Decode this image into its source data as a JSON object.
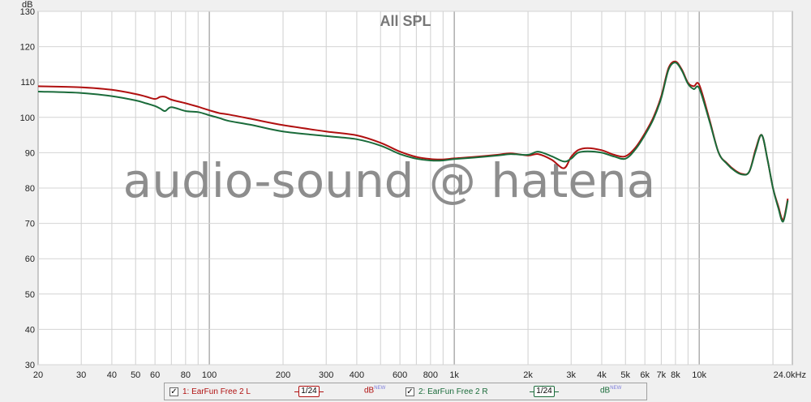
{
  "chart_data": {
    "type": "line",
    "title": "All SPL",
    "ylabel": "dB",
    "xscale": "log",
    "xlim": [
      20,
      24000
    ],
    "ylim": [
      30,
      130
    ],
    "y_ticks": [
      30,
      40,
      50,
      60,
      70,
      80,
      90,
      100,
      110,
      120,
      130
    ],
    "x_tick_labels": [
      {
        "f": 20,
        "label": "20"
      },
      {
        "f": 30,
        "label": "30"
      },
      {
        "f": 40,
        "label": "40"
      },
      {
        "f": 50,
        "label": "50"
      },
      {
        "f": 60,
        "label": "60"
      },
      {
        "f": 80,
        "label": "80"
      },
      {
        "f": 100,
        "label": "100"
      },
      {
        "f": 200,
        "label": "200"
      },
      {
        "f": 300,
        "label": "300"
      },
      {
        "f": 400,
        "label": "400"
      },
      {
        "f": 600,
        "label": "600"
      },
      {
        "f": 800,
        "label": "800"
      },
      {
        "f": 1000,
        "label": "1k"
      },
      {
        "f": 2000,
        "label": "2k"
      },
      {
        "f": 3000,
        "label": "3k"
      },
      {
        "f": 4000,
        "label": "4k"
      },
      {
        "f": 5000,
        "label": "5k"
      },
      {
        "f": 6000,
        "label": "6k"
      },
      {
        "f": 7000,
        "label": "7k"
      },
      {
        "f": 8000,
        "label": "8k"
      },
      {
        "f": 10000,
        "label": "10k"
      },
      {
        "f": 24000,
        "label": "24.0kHz"
      }
    ],
    "grid": true,
    "watermark": "audio-sound @ hatena",
    "series": [
      {
        "name": "1: EarFun Free 2 L",
        "color": "#b01010",
        "x": [
          20,
          30,
          40,
          50,
          55,
          60,
          63,
          66,
          70,
          80,
          90,
          100,
          110,
          120,
          150,
          200,
          300,
          400,
          500,
          600,
          700,
          800,
          900,
          1000,
          1200,
          1500,
          1700,
          2000,
          2200,
          2500,
          2800,
          3000,
          3200,
          3500,
          4000,
          4500,
          5000,
          5500,
          6000,
          6500,
          7000,
          7500,
          8000,
          8500,
          9000,
          9500,
          10000,
          11000,
          12000,
          13000,
          14000,
          15000,
          16000,
          17000,
          18000,
          19000,
          20000,
          21000,
          22000,
          23000
        ],
        "y": [
          108.8,
          108.5,
          107.8,
          106.6,
          105.9,
          105.2,
          105.8,
          105.8,
          105.0,
          104.0,
          103.0,
          102.0,
          101.2,
          100.8,
          99.5,
          97.8,
          96.0,
          94.9,
          92.8,
          90.3,
          88.8,
          88.2,
          88.1,
          88.4,
          88.8,
          89.4,
          89.8,
          89.2,
          89.6,
          88.0,
          85.6,
          88.8,
          90.7,
          91.3,
          90.7,
          89.4,
          89.0,
          91.5,
          95.5,
          100.0,
          106.0,
          114.0,
          115.8,
          113.5,
          109.8,
          108.8,
          109.2,
          99.5,
          90.0,
          87.0,
          85.0,
          84.0,
          84.6,
          91.0,
          95.0,
          88.0,
          80.0,
          75.0,
          71.0,
          77.0
        ]
      },
      {
        "name": "2: EarFun Free 2 R",
        "color": "#1a6b3a",
        "x": [
          20,
          30,
          40,
          50,
          55,
          60,
          63,
          66,
          70,
          80,
          90,
          100,
          110,
          120,
          150,
          200,
          300,
          400,
          500,
          600,
          700,
          800,
          900,
          1000,
          1200,
          1500,
          1700,
          2000,
          2200,
          2500,
          2800,
          3000,
          3200,
          3500,
          4000,
          4500,
          5000,
          5500,
          6000,
          6500,
          7000,
          7500,
          8000,
          8500,
          9000,
          9500,
          10000,
          11000,
          12000,
          13000,
          14000,
          15000,
          16000,
          17000,
          18000,
          19000,
          20000,
          21000,
          22000,
          23000
        ],
        "y": [
          107.3,
          106.9,
          106.0,
          104.8,
          104.0,
          103.2,
          102.5,
          101.8,
          102.9,
          101.8,
          101.5,
          100.6,
          99.8,
          99.0,
          97.8,
          96.0,
          94.7,
          93.8,
          92.0,
          89.6,
          88.3,
          87.8,
          87.8,
          88.2,
          88.6,
          89.2,
          89.6,
          89.4,
          90.3,
          89.0,
          87.5,
          88.3,
          90.0,
          90.4,
          90.0,
          88.9,
          88.3,
          91.0,
          95.0,
          99.5,
          105.5,
          113.5,
          115.5,
          113.2,
          109.5,
          108.0,
          108.2,
          99.0,
          90.0,
          86.8,
          84.8,
          83.8,
          84.6,
          90.5,
          95.0,
          88.0,
          80.0,
          74.5,
          70.5,
          76.5
        ]
      }
    ]
  },
  "legend": {
    "items": [
      {
        "label": "1: EarFun Free 2 L",
        "smoothing": "1/24",
        "db": "dB",
        "db_sup": "NEW",
        "checked": "✓",
        "color": "#b01010"
      },
      {
        "label": "2: EarFun Free 2 R",
        "smoothing": "1/24",
        "db": "dB",
        "db_sup": "NEW",
        "checked": "✓",
        "color": "#1a6b3a"
      }
    ]
  }
}
